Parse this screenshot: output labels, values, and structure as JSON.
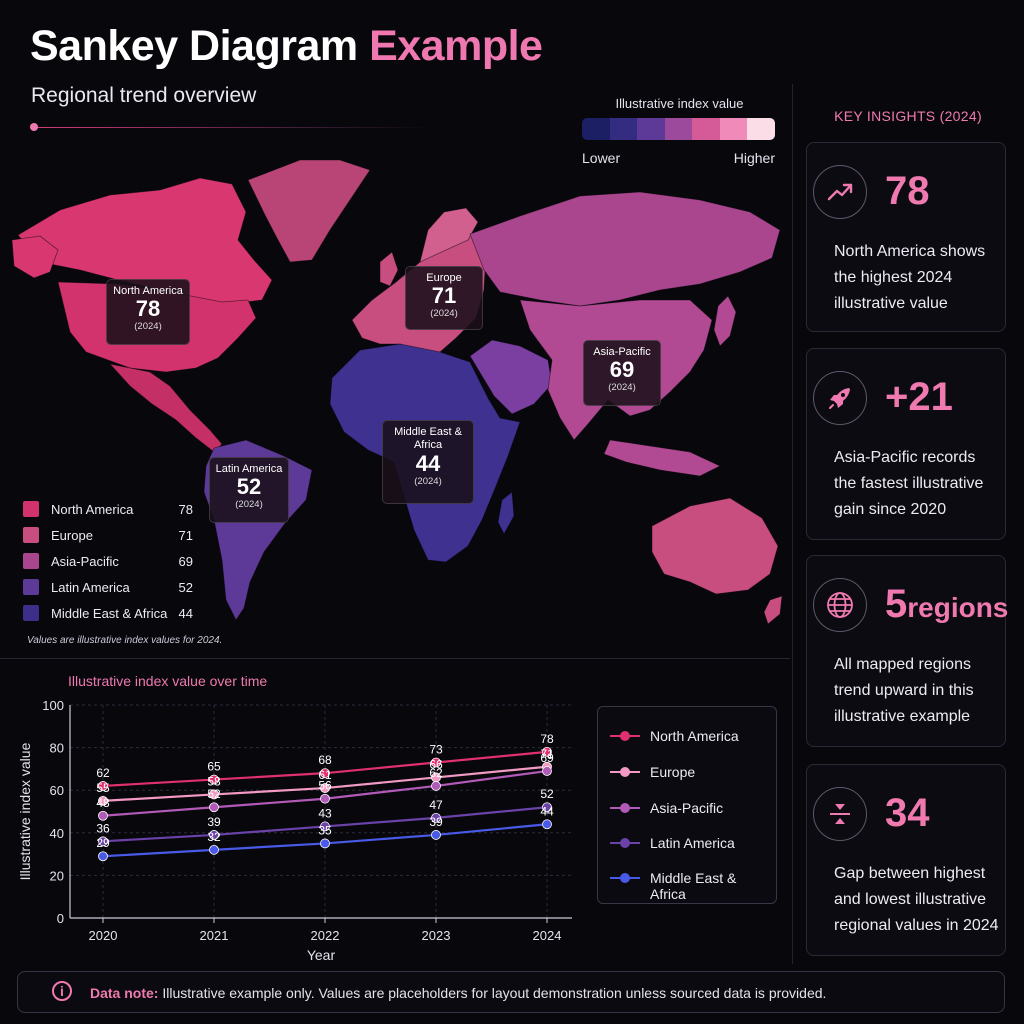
{
  "header": {
    "title_main": "Sankey Diagram",
    "title_accent": "Example",
    "subtitle": "Regional trend overview"
  },
  "scale": {
    "label": "Illustrative index value",
    "low": "Lower",
    "high": "Higher",
    "colors": [
      "#1c1f63",
      "#342c80",
      "#5d3a97",
      "#9b4a9c",
      "#d45b97",
      "#f08ab8",
      "#fbdde8"
    ]
  },
  "regions": [
    {
      "name": "North America",
      "value": "78",
      "year": "(2024)",
      "color": "#d2336c"
    },
    {
      "name": "Europe",
      "value": "71",
      "year": "(2024)",
      "color": "#c84e80"
    },
    {
      "name": "Asia-Pacific",
      "value": "69",
      "year": "(2024)",
      "color": "#a9468e"
    },
    {
      "name": "Latin America",
      "value": "52",
      "year": "(2024)",
      "color": "#5e3a98"
    },
    {
      "name": "Middle East & Africa",
      "value": "44",
      "year": "(2024)",
      "color": "#3b2f8a"
    }
  ],
  "map_note": "Values are illustrative index values for 2024.",
  "chart_title": "Illustrative index value over time",
  "chart_data": {
    "type": "line",
    "title": "Illustrative index value over time",
    "xlabel": "Year",
    "ylabel": "Illustrative index value",
    "x": [
      "2020",
      "2021",
      "2022",
      "2023",
      "2024"
    ],
    "ylim": [
      0,
      100
    ],
    "yticks": [
      0,
      20,
      40,
      60,
      80,
      100
    ],
    "grid": true,
    "legend_position": "right",
    "series": [
      {
        "name": "North America",
        "color": "#e0306e",
        "values": [
          62,
          65,
          68,
          73,
          78
        ]
      },
      {
        "name": "Europe",
        "color": "#f29ac3",
        "values": [
          55,
          58,
          61,
          66,
          71
        ]
      },
      {
        "name": "Asia-Pacific",
        "color": "#b25ab8",
        "values": [
          48,
          52,
          56,
          62,
          69
        ]
      },
      {
        "name": "Latin America",
        "color": "#6a42a8",
        "values": [
          36,
          39,
          43,
          47,
          52
        ]
      },
      {
        "name": "Middle East & Africa",
        "color": "#4a5ae8",
        "values": [
          29,
          32,
          35,
          39,
          44
        ]
      }
    ]
  },
  "insights": {
    "heading": "KEY INSIGHTS (2024)",
    "cards": [
      {
        "icon": "trend-up-icon",
        "value": "78",
        "text": "North America shows the highest 2024 illustrative value"
      },
      {
        "icon": "rocket-icon",
        "value": "+21",
        "text": "Asia-Pacific records the fastest illustrative gain since 2020"
      },
      {
        "icon": "globe-icon",
        "value": "5",
        "value_suffix": "regions",
        "text": "All mapped regions trend upward in this illustrative example"
      },
      {
        "icon": "gap-icon",
        "value": "34",
        "text": "Gap between highest and lowest illustrative regional values in 2024"
      }
    ]
  },
  "note": {
    "label": "Data note:",
    "text": "Illustrative example only. Values are placeholders for layout demonstration unless sourced data is provided."
  }
}
